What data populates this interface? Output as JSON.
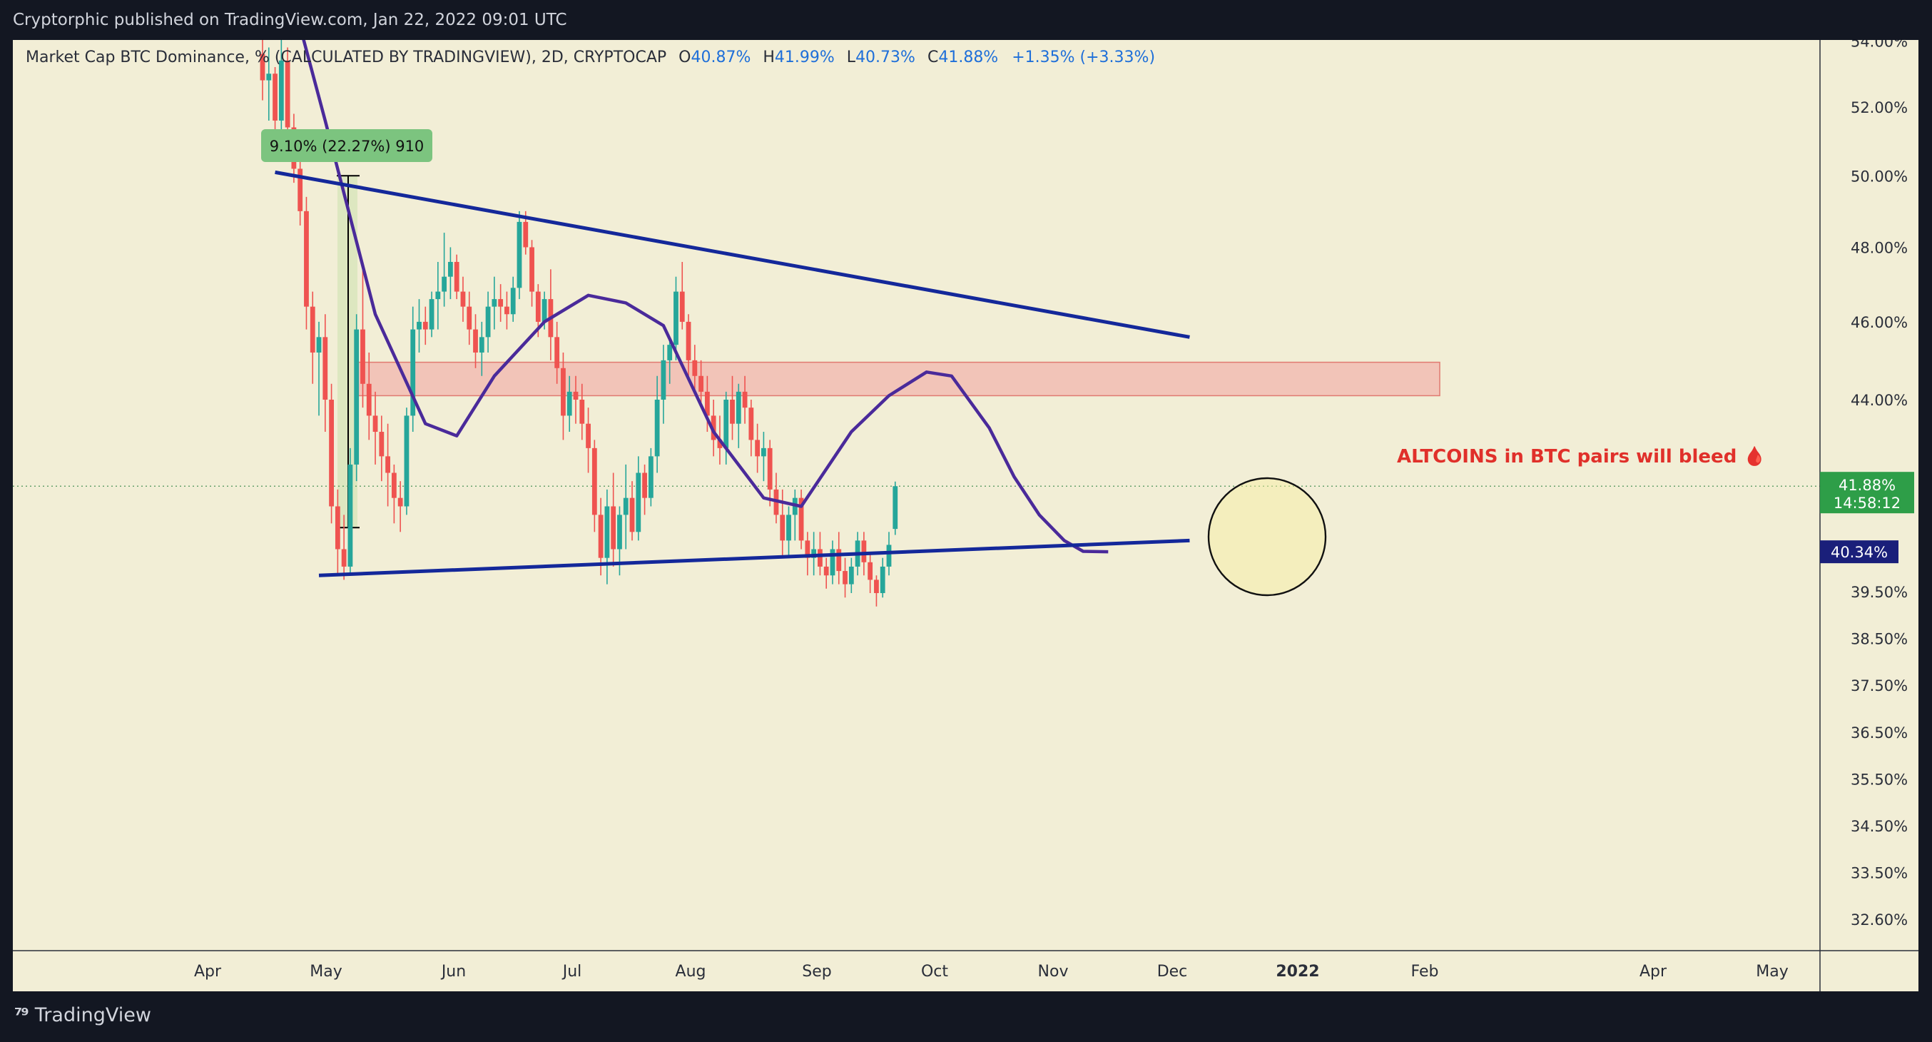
{
  "header": {
    "publisher_line": "Cryptorphic published on TradingView.com, Jan 22, 2022 09:01 UTC"
  },
  "legend": {
    "symbol": "Market Cap BTC Dominance, % (CALCULATED BY TRADINGVIEW), 2D, CRYPTOCAP",
    "o_label": "O",
    "o_value": "40.87%",
    "h_label": "H",
    "h_value": "41.99%",
    "l_label": "L",
    "l_value": "40.73%",
    "c_label": "C",
    "c_value": "41.88%",
    "change": "+1.35% (+3.33%)"
  },
  "footer": {
    "brand": "TradingView"
  },
  "colors": {
    "up": "#26a69a",
    "down": "#ef5350",
    "trendline": "#14289a",
    "ma": "#4a2a9a",
    "zone": "#f2b6ae",
    "annotation": "#e0302a",
    "measure_label_bg": "#7cc47f",
    "price_tag_green": "#2e9e48",
    "price_tag_navy": "#1a1f7a"
  },
  "chart_data": {
    "type": "candlestick",
    "timeframe": "2D",
    "y_axis": {
      "scale": "log",
      "tick_labels": [
        "54.00%",
        "52.00%",
        "50.00%",
        "48.00%",
        "46.00%",
        "44.00%",
        "41.88%",
        "40.34%",
        "39.50%",
        "38.50%",
        "37.50%",
        "36.50%",
        "35.50%",
        "34.50%",
        "33.50%",
        "32.60%"
      ],
      "tick_values": [
        54.0,
        52.0,
        50.0,
        48.0,
        46.0,
        44.0,
        39.5,
        38.5,
        37.5,
        36.5,
        35.5,
        34.5,
        33.5,
        32.6
      ]
    },
    "x_axis": {
      "tick_labels": [
        "Apr",
        "May",
        "Jun",
        "Jul",
        "Aug",
        "Sep",
        "Oct",
        "Nov",
        "Dec",
        "2022",
        "Feb",
        "Apr",
        "May"
      ]
    },
    "last_price": {
      "value": "41.88%",
      "countdown": "14:58:12"
    },
    "ma_tag": {
      "value": "40.34%"
    },
    "measure_label": "9.10% (22.27%) 910",
    "annotation": "ALTCOINS in BTC pairs will bleed 🩸",
    "candles_ohlc": [
      [
        53.6,
        54.4,
        52.2,
        52.8
      ],
      [
        52.8,
        53.8,
        51.6,
        53.0
      ],
      [
        53.0,
        53.2,
        51.0,
        51.6
      ],
      [
        51.6,
        54.6,
        50.8,
        53.4
      ],
      [
        53.4,
        53.8,
        51.0,
        51.4
      ],
      [
        51.4,
        51.8,
        49.8,
        50.2
      ],
      [
        50.2,
        50.6,
        48.6,
        49.0
      ],
      [
        49.0,
        49.4,
        45.8,
        46.4
      ],
      [
        46.4,
        46.8,
        44.4,
        45.2
      ],
      [
        45.2,
        46.0,
        43.6,
        45.6
      ],
      [
        45.6,
        46.2,
        43.2,
        44.0
      ],
      [
        44.0,
        44.4,
        41.0,
        41.4
      ],
      [
        41.4,
        41.8,
        39.8,
        40.4
      ],
      [
        40.4,
        41.2,
        39.7,
        40.0
      ],
      [
        40.0,
        42.8,
        39.8,
        42.4
      ],
      [
        42.4,
        46.2,
        42.0,
        45.8
      ],
      [
        45.8,
        47.4,
        43.8,
        44.4
      ],
      [
        44.4,
        45.2,
        43.0,
        43.6
      ],
      [
        43.6,
        44.2,
        42.4,
        43.2
      ],
      [
        43.2,
        43.6,
        42.0,
        42.6
      ],
      [
        42.6,
        43.4,
        41.4,
        42.2
      ],
      [
        42.2,
        42.4,
        41.0,
        41.6
      ],
      [
        41.6,
        42.0,
        40.8,
        41.4
      ],
      [
        41.4,
        43.8,
        41.2,
        43.6
      ],
      [
        43.6,
        46.4,
        43.2,
        45.8
      ],
      [
        45.8,
        46.6,
        45.2,
        46.0
      ],
      [
        46.0,
        46.4,
        45.4,
        45.8
      ],
      [
        45.8,
        46.8,
        45.6,
        46.6
      ],
      [
        46.6,
        47.6,
        45.8,
        46.8
      ],
      [
        46.8,
        48.4,
        46.4,
        47.2
      ],
      [
        47.2,
        48.0,
        46.6,
        47.6
      ],
      [
        47.6,
        47.8,
        46.6,
        46.8
      ],
      [
        46.8,
        47.2,
        46.0,
        46.4
      ],
      [
        46.4,
        46.8,
        45.4,
        45.8
      ],
      [
        45.8,
        46.2,
        44.8,
        45.2
      ],
      [
        45.2,
        46.0,
        44.6,
        45.6
      ],
      [
        45.6,
        46.8,
        45.2,
        46.4
      ],
      [
        46.4,
        47.2,
        45.8,
        46.6
      ],
      [
        46.6,
        47.0,
        46.0,
        46.4
      ],
      [
        46.4,
        46.8,
        45.8,
        46.2
      ],
      [
        46.2,
        47.2,
        46.0,
        46.9
      ],
      [
        46.9,
        49.0,
        46.6,
        48.7
      ],
      [
        48.7,
        49.0,
        47.8,
        48.0
      ],
      [
        48.0,
        48.2,
        46.4,
        46.8
      ],
      [
        46.8,
        47.0,
        45.6,
        46.0
      ],
      [
        46.0,
        46.8,
        45.8,
        46.6
      ],
      [
        46.6,
        47.4,
        45.0,
        45.6
      ],
      [
        45.6,
        46.0,
        44.4,
        44.8
      ],
      [
        44.8,
        45.2,
        43.0,
        43.6
      ],
      [
        43.6,
        44.6,
        43.2,
        44.2
      ],
      [
        44.2,
        44.6,
        43.4,
        44.0
      ],
      [
        44.0,
        44.4,
        43.0,
        43.4
      ],
      [
        43.4,
        43.8,
        42.2,
        42.8
      ],
      [
        42.8,
        43.0,
        40.8,
        41.2
      ],
      [
        41.2,
        41.6,
        39.8,
        40.2
      ],
      [
        40.2,
        41.8,
        39.6,
        41.4
      ],
      [
        41.4,
        42.2,
        40.0,
        40.4
      ],
      [
        40.4,
        41.4,
        39.8,
        41.2
      ],
      [
        41.2,
        42.4,
        40.4,
        41.6
      ],
      [
        41.6,
        42.0,
        40.6,
        40.8
      ],
      [
        40.8,
        42.6,
        40.6,
        42.2
      ],
      [
        42.2,
        42.4,
        41.2,
        41.6
      ],
      [
        41.6,
        42.8,
        41.4,
        42.6
      ],
      [
        42.6,
        44.6,
        42.2,
        44.0
      ],
      [
        44.0,
        45.4,
        43.4,
        45.0
      ],
      [
        45.0,
        45.6,
        44.4,
        45.4
      ],
      [
        45.4,
        47.2,
        45.0,
        46.8
      ],
      [
        46.8,
        47.6,
        45.8,
        46.0
      ],
      [
        46.0,
        46.2,
        44.6,
        45.0
      ],
      [
        45.0,
        45.4,
        44.2,
        44.6
      ],
      [
        44.6,
        45.0,
        43.8,
        44.2
      ],
      [
        44.2,
        44.6,
        43.2,
        43.6
      ],
      [
        43.6,
        44.0,
        42.6,
        43.0
      ],
      [
        43.0,
        43.6,
        42.4,
        42.8
      ],
      [
        42.8,
        44.2,
        42.4,
        44.0
      ],
      [
        44.0,
        44.6,
        43.0,
        43.4
      ],
      [
        43.4,
        44.4,
        42.8,
        44.2
      ],
      [
        44.2,
        44.6,
        43.4,
        43.8
      ],
      [
        43.8,
        44.0,
        42.6,
        43.0
      ],
      [
        43.0,
        43.4,
        42.2,
        42.6
      ],
      [
        42.6,
        43.2,
        42.0,
        42.8
      ],
      [
        42.8,
        43.0,
        41.4,
        41.8
      ],
      [
        41.8,
        42.2,
        41.0,
        41.2
      ],
      [
        41.2,
        41.8,
        40.2,
        40.6
      ],
      [
        40.6,
        41.4,
        40.2,
        41.2
      ],
      [
        41.2,
        41.8,
        40.6,
        41.6
      ],
      [
        41.6,
        41.8,
        40.4,
        40.6
      ],
      [
        40.6,
        40.8,
        39.8,
        40.2
      ],
      [
        40.2,
        40.8,
        39.8,
        40.4
      ],
      [
        40.4,
        40.8,
        39.8,
        40.0
      ],
      [
        40.0,
        40.2,
        39.5,
        39.8
      ],
      [
        39.8,
        40.6,
        39.6,
        40.4
      ],
      [
        40.4,
        40.8,
        39.6,
        39.9
      ],
      [
        39.9,
        40.2,
        39.3,
        39.6
      ],
      [
        39.6,
        40.2,
        39.4,
        40.0
      ],
      [
        40.0,
        40.8,
        39.8,
        40.6
      ],
      [
        40.6,
        40.8,
        39.8,
        40.1
      ],
      [
        40.1,
        40.3,
        39.4,
        39.7
      ],
      [
        39.7,
        39.8,
        39.1,
        39.4
      ],
      [
        39.4,
        40.2,
        39.3,
        40.0
      ],
      [
        40.0,
        40.8,
        39.8,
        40.5
      ],
      [
        40.87,
        41.99,
        40.73,
        41.88
      ]
    ],
    "moving_average": [
      [
        0,
        59.0
      ],
      [
        10,
        51.6
      ],
      [
        18,
        46.2
      ],
      [
        26,
        43.4
      ],
      [
        31,
        43.1
      ],
      [
        37,
        44.6
      ],
      [
        45,
        46.0
      ],
      [
        52,
        46.7
      ],
      [
        58,
        46.5
      ],
      [
        64,
        45.9
      ],
      [
        72,
        43.2
      ],
      [
        80,
        41.6
      ],
      [
        86,
        41.4
      ],
      [
        94,
        43.2
      ],
      [
        100,
        44.1
      ],
      [
        106,
        44.7
      ],
      [
        110,
        44.6
      ],
      [
        116,
        43.3
      ],
      [
        120,
        42.1
      ],
      [
        124,
        41.2
      ],
      [
        128,
        40.6
      ],
      [
        131,
        40.35
      ],
      [
        135,
        40.34
      ]
    ],
    "trendlines": [
      {
        "role": "upper",
        "from": [
          2,
          50.1
        ],
        "to": [
          148,
          45.6
        ]
      },
      {
        "role": "lower",
        "from": [
          9,
          39.8
        ],
        "to": [
          148,
          40.6
        ]
      }
    ],
    "zone": {
      "low": 44.1,
      "high": 44.95
    }
  }
}
